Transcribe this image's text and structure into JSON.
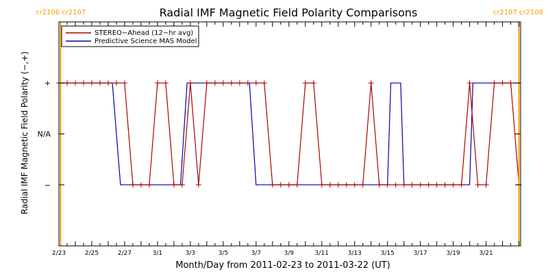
{
  "chart_data": {
    "type": "line",
    "title": "Radial IMF Magnetic Field Polarity Comparisons",
    "xlabel": "Month/Day from 2011-02-23 to 2011-03-22 (UT)",
    "ylabel": "Radial IMF Magnetic Field Polarity (−,+)",
    "x_range_days": [
      0,
      28.1
    ],
    "x_ticks": [
      {
        "day": 0,
        "label": "2/23"
      },
      {
        "day": 2,
        "label": "2/25"
      },
      {
        "day": 4,
        "label": "2/27"
      },
      {
        "day": 6,
        "label": "3/1"
      },
      {
        "day": 8,
        "label": "3/3"
      },
      {
        "day": 10,
        "label": "3/5"
      },
      {
        "day": 12,
        "label": "3/7"
      },
      {
        "day": 14,
        "label": "3/9"
      },
      {
        "day": 16,
        "label": "3/11"
      },
      {
        "day": 18,
        "label": "3/13"
      },
      {
        "day": 20,
        "label": "3/15"
      },
      {
        "day": 22,
        "label": "3/17"
      },
      {
        "day": 24,
        "label": "3/19"
      },
      {
        "day": 26,
        "label": "3/21"
      }
    ],
    "y_range": [
      -2.2,
      2.2
    ],
    "y_ticks": [
      {
        "value": 1,
        "label": "+"
      },
      {
        "value": 0,
        "label": "N/A"
      },
      {
        "value": -1,
        "label": "−"
      }
    ],
    "legend": {
      "placement": "top-left",
      "entries": [
        {
          "name": "STEREO−Ahead (12−hr avg)",
          "color": "#aa0000"
        },
        {
          "name": "Predictive Science MAS Model",
          "color": "#0000aa"
        }
      ]
    },
    "carrington_markers": [
      {
        "day": 0.1,
        "label": "cr2106 cr2107",
        "color": "#ff9900",
        "align": "left"
      },
      {
        "day": 28.0,
        "label": "cr2107 cr2108",
        "color": "#ff9900",
        "align": "right"
      }
    ],
    "series": [
      {
        "name": "STEREO−Ahead (12−hr avg)",
        "color": "#aa0000",
        "markers": "plus",
        "x": [
          0,
          0.5,
          1,
          1.5,
          2,
          2.5,
          3,
          3.5,
          4,
          4.5,
          5,
          5.5,
          6,
          6.5,
          7,
          7.5,
          8,
          8.5,
          9,
          9.5,
          10,
          10.5,
          11,
          11.5,
          12,
          12.5,
          13,
          13.5,
          14,
          14.5,
          15,
          15.5,
          16,
          16.5,
          17,
          17.5,
          18,
          18.5,
          19,
          19.5,
          20,
          20.5,
          21,
          21.5,
          22,
          22.5,
          23,
          23.5,
          24,
          24.5,
          25,
          25.5,
          26,
          26.5,
          27,
          27.5,
          28
        ],
        "y": [
          1,
          1,
          1,
          1,
          1,
          1,
          1,
          1,
          1,
          -1,
          -1,
          -1,
          1,
          1,
          -1,
          -1,
          1,
          -1,
          1,
          1,
          1,
          1,
          1,
          1,
          1,
          1,
          -1,
          -1,
          -1,
          -1,
          1,
          1,
          -1,
          -1,
          -1,
          -1,
          -1,
          -1,
          1,
          -1,
          -1,
          -1,
          -1,
          -1,
          -1,
          -1,
          -1,
          -1,
          -1,
          -1,
          1,
          -1,
          -1,
          1,
          1,
          1,
          -1
        ]
      },
      {
        "name": "Predictive Science MAS Model",
        "color": "#0000aa",
        "markers": "none",
        "x": [
          0,
          3.25,
          3.75,
          7.4,
          7.8,
          11.6,
          12.0,
          20.0,
          20.2,
          20.8,
          21.0,
          25.0,
          25.2,
          28.1
        ],
        "y": [
          1,
          1,
          -1,
          -1,
          1,
          1,
          -1,
          -1,
          1,
          1,
          -1,
          -1,
          1,
          1
        ]
      }
    ]
  }
}
